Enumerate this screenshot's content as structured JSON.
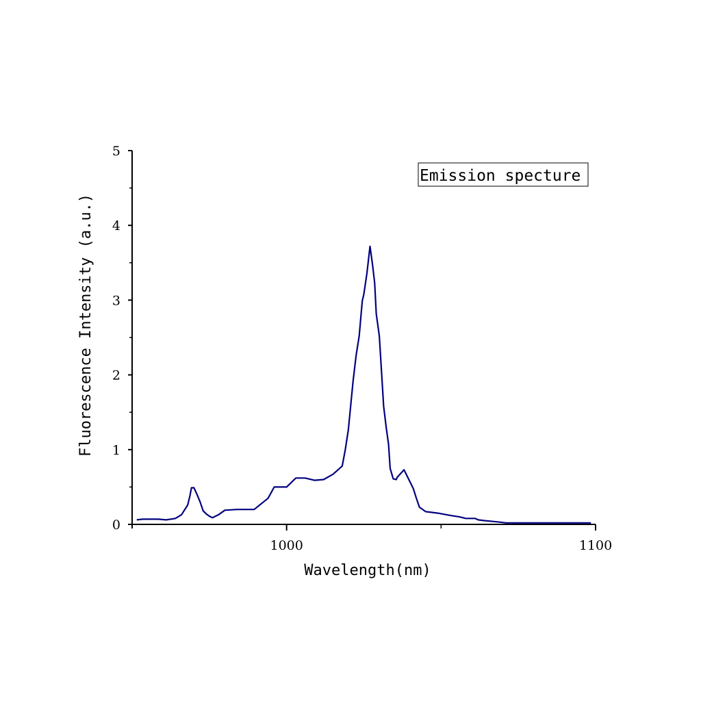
{
  "chart_data": {
    "type": "line",
    "title": "",
    "xlabel": "Wavelength(nm)",
    "ylabel": "Fluorescence Intensity (a.u.)",
    "xlim": [
      950,
      1100
    ],
    "ylim": [
      0,
      5
    ],
    "x_ticks": [
      1000,
      1100
    ],
    "x_tick_labels": [
      "1000",
      "1100"
    ],
    "y_ticks": [
      0,
      1,
      2,
      3,
      4,
      5
    ],
    "y_tick_labels": [
      "0",
      "1",
      "2",
      "3",
      "4",
      "5"
    ],
    "grid": false,
    "legend_text": "Emission specture",
    "legend_position": "top-right",
    "series": [
      {
        "color": "#00007f",
        "x": [
          951.5,
          953.5,
          958.5,
          961,
          964,
          966,
          968,
          968.7,
          969.2,
          970,
          971,
          972,
          973,
          974,
          975,
          976,
          978,
          980,
          984,
          989.5,
          994,
          996,
          1000,
          1003,
          1006,
          1009,
          1012,
          1015,
          1018,
          1019,
          1020,
          1021.5,
          1022.5,
          1023.5,
          1024.5,
          1025,
          1026,
          1027,
          1027.8,
          1028.5,
          1029,
          1030,
          1031,
          1031.4,
          1032.3,
          1033,
          1033.5,
          1034.5,
          1035.5,
          1035.8,
          1038,
          1041,
          1042,
          1043,
          1045,
          1049,
          1053,
          1056,
          1058,
          1061,
          1062,
          1064,
          1069,
          1071,
          1075,
          1080,
          1082,
          1084,
          1086,
          1098.5
        ],
        "y": [
          0.06,
          0.07,
          0.07,
          0.06,
          0.08,
          0.13,
          0.26,
          0.38,
          0.49,
          0.49,
          0.4,
          0.3,
          0.18,
          0.14,
          0.11,
          0.09,
          0.13,
          0.19,
          0.2,
          0.2,
          0.35,
          0.5,
          0.5,
          0.62,
          0.62,
          0.59,
          0.6,
          0.67,
          0.78,
          1.0,
          1.27,
          1.91,
          2.26,
          2.52,
          2.99,
          3.08,
          3.36,
          3.72,
          3.48,
          3.23,
          2.82,
          2.52,
          1.85,
          1.58,
          1.28,
          1.07,
          0.75,
          0.61,
          0.6,
          0.63,
          0.73,
          0.48,
          0.35,
          0.23,
          0.17,
          0.15,
          0.12,
          0.1,
          0.08,
          0.08,
          0.06,
          0.05,
          0.03,
          0.02,
          0.02,
          0.02,
          0.02,
          0.02,
          0.02,
          0.02
        ]
      }
    ]
  }
}
